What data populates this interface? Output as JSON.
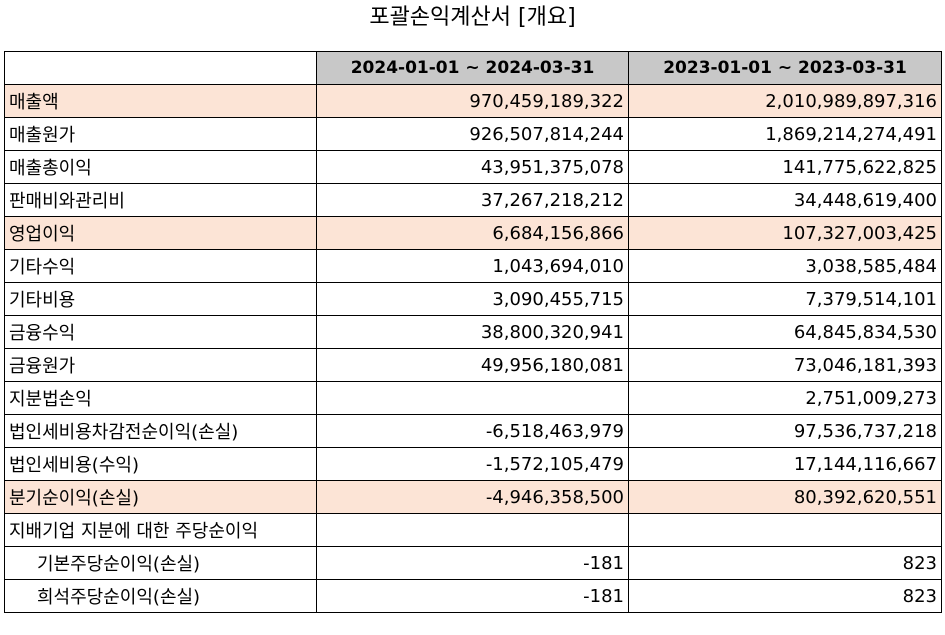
{
  "title": "포괄손익계산서 [개요]",
  "columns": {
    "current": "2024-01-01 ~ 2024-03-31",
    "previous": "2023-01-01 ~ 2023-03-31"
  },
  "rows": [
    {
      "label": "매출액",
      "current": "970,459,189,322",
      "previous": "2,010,989,897,316"
    },
    {
      "label": "매출원가",
      "current": "926,507,814,244",
      "previous": "1,869,214,274,491"
    },
    {
      "label": "매출총이익",
      "current": "43,951,375,078",
      "previous": "141,775,622,825"
    },
    {
      "label": "판매비와관리비",
      "current": "37,267,218,212",
      "previous": "34,448,619,400"
    },
    {
      "label": "영업이익",
      "current": "6,684,156,866",
      "previous": "107,327,003,425"
    },
    {
      "label": "기타수익",
      "current": "1,043,694,010",
      "previous": "3,038,585,484"
    },
    {
      "label": "기타비용",
      "current": "3,090,455,715",
      "previous": "7,379,514,101"
    },
    {
      "label": "금융수익",
      "current": "38,800,320,941",
      "previous": "64,845,834,530"
    },
    {
      "label": "금융원가",
      "current": "49,956,180,081",
      "previous": "73,046,181,393"
    },
    {
      "label": "지분법손익",
      "current": "",
      "previous": "2,751,009,273"
    },
    {
      "label": "법인세비용차감전순이익(손실)",
      "current": "-6,518,463,979",
      "previous": "97,536,737,218"
    },
    {
      "label": "법인세비용(수익)",
      "current": "-1,572,105,479",
      "previous": "17,144,116,667"
    },
    {
      "label": "분기순이익(손실)",
      "current": "-4,946,358,500",
      "previous": "80,392,620,551"
    },
    {
      "label": "지배기업 지분에 대한 주당순이익",
      "current": "",
      "previous": ""
    },
    {
      "label": "기본주당순이익(손실)",
      "current": "-181",
      "previous": "823"
    },
    {
      "label": "희석주당순이익(손실)",
      "current": "-181",
      "previous": "823"
    }
  ]
}
